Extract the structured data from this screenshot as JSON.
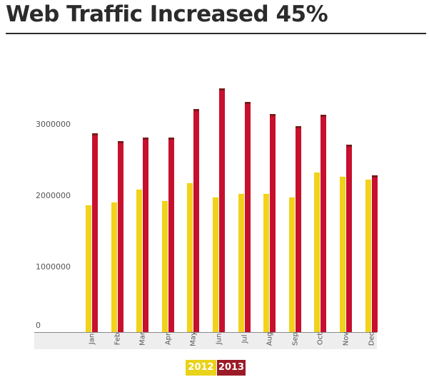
{
  "title": "Web Traffic Increased 45%",
  "y_ticks": [
    "3000000",
    "2000000",
    "1000000",
    "0"
  ],
  "legend": [
    {
      "label": "2012",
      "color": "#f2d21a"
    },
    {
      "label": "2013",
      "color": "#9b1b26"
    }
  ],
  "chart_data": {
    "type": "bar",
    "title": "Web Traffic Increased 45%",
    "xlabel": "",
    "ylabel": "",
    "categories": [
      "Jan",
      "Feb",
      "Mar",
      "Apr",
      "May",
      "Jun",
      "Jul",
      "Aug",
      "Sep",
      "Oct",
      "Nov",
      "Dec"
    ],
    "series": [
      {
        "name": "2012",
        "color": "#f2d21a",
        "values": [
          1840000,
          1880000,
          2060000,
          1900000,
          2150000,
          1950000,
          2000000,
          2000000,
          1950000,
          2310000,
          2250000,
          2210000
        ]
      },
      {
        "name": "2013",
        "color": "#c8102e",
        "values": [
          2880000,
          2760000,
          2810000,
          2810000,
          3230000,
          3530000,
          3330000,
          3150000,
          2980000,
          3140000,
          2710000,
          2270000
        ]
      }
    ],
    "ylim": [
      0,
      3600000
    ],
    "yticks": [
      0,
      1000000,
      2000000,
      3000000
    ],
    "grid": false,
    "legend_position": "bottom"
  }
}
